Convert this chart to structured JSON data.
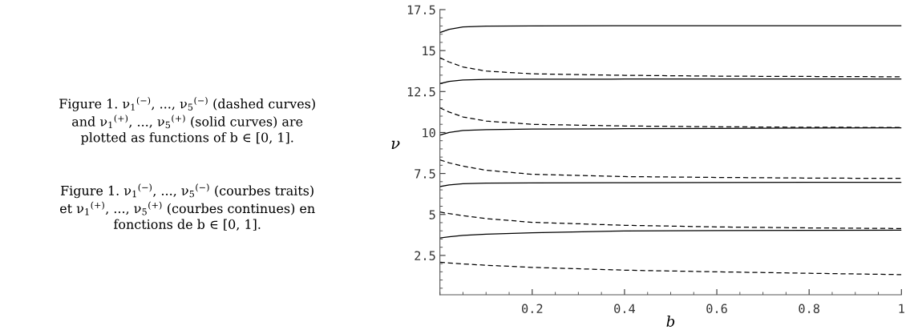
{
  "chart_data": {
    "type": "line",
    "xlabel": "b",
    "ylabel": "ν",
    "xlim": [
      0,
      1
    ],
    "ylim": [
      0.1,
      17.5
    ],
    "xticks": [
      0.2,
      0.4,
      0.6,
      0.8,
      1
    ],
    "yticks": [
      2.5,
      5,
      7.5,
      10,
      12.5,
      15,
      17.5
    ],
    "grid": false,
    "legend": false,
    "marker": "none",
    "x": [
      0,
      0.02,
      0.05,
      0.1,
      0.2,
      0.4,
      0.6,
      0.8,
      1
    ],
    "series": [
      {
        "color": "#000000",
        "line_style": "dashed",
        "values": [
          2.09,
          2.04,
          1.98,
          1.9,
          1.77,
          1.6,
          1.5,
          1.41,
          1.33
        ]
      },
      {
        "color": "#000000",
        "line_style": "solid",
        "values": [
          3.57,
          3.64,
          3.72,
          3.8,
          3.88,
          3.99,
          4.02,
          4.03,
          4.04
        ]
      },
      {
        "color": "#000000",
        "line_style": "dashed",
        "values": [
          5.15,
          5.05,
          4.92,
          4.75,
          4.52,
          4.34,
          4.24,
          4.18,
          4.14
        ]
      },
      {
        "color": "#000000",
        "line_style": "solid",
        "values": [
          6.7,
          6.8,
          6.87,
          6.91,
          6.93,
          6.94,
          6.95,
          6.96,
          6.96
        ]
      },
      {
        "color": "#000000",
        "line_style": "dashed",
        "values": [
          8.33,
          8.15,
          7.95,
          7.7,
          7.45,
          7.31,
          7.26,
          7.22,
          7.2
        ]
      },
      {
        "color": "#000000",
        "line_style": "solid",
        "values": [
          9.84,
          10.0,
          10.12,
          10.18,
          10.21,
          10.23,
          10.25,
          10.27,
          10.28
        ]
      },
      {
        "color": "#000000",
        "line_style": "dashed",
        "values": [
          11.5,
          11.25,
          10.95,
          10.7,
          10.5,
          10.4,
          10.35,
          10.32,
          10.31
        ]
      },
      {
        "color": "#000000",
        "line_style": "solid",
        "values": [
          12.98,
          13.12,
          13.2,
          13.24,
          13.25,
          13.26,
          13.26,
          13.27,
          13.27
        ]
      },
      {
        "color": "#000000",
        "line_style": "dashed",
        "values": [
          14.56,
          14.3,
          14.0,
          13.75,
          13.58,
          13.49,
          13.44,
          13.42,
          13.4
        ]
      },
      {
        "color": "#000000",
        "line_style": "solid",
        "values": [
          16.1,
          16.3,
          16.44,
          16.49,
          16.51,
          16.52,
          16.52,
          16.52,
          16.52
        ]
      }
    ],
    "annotations": [
      "Figure 1. ν$_{1}$$^{(−)}$, ..., ν$_{5}$$^{(−)}$ (dashed curves)\nand ν$_{1}$$^{(+)}$, ..., ν$_{5}$$^{(+)}$ (solid curves) are\nplotted as functions of b ∈ [0, 1].",
      "Figure 1. ν$_{1}$$^{(−)}$, ..., ν$_{5}$$^{(−)}$ (courbes traits)\net ν$_{1}$$^{(+)}$, ..., ν$_{5}$$^{(+)}$ (courbes continues) en\nfonctions de b ∈ [0, 1]."
    ]
  }
}
